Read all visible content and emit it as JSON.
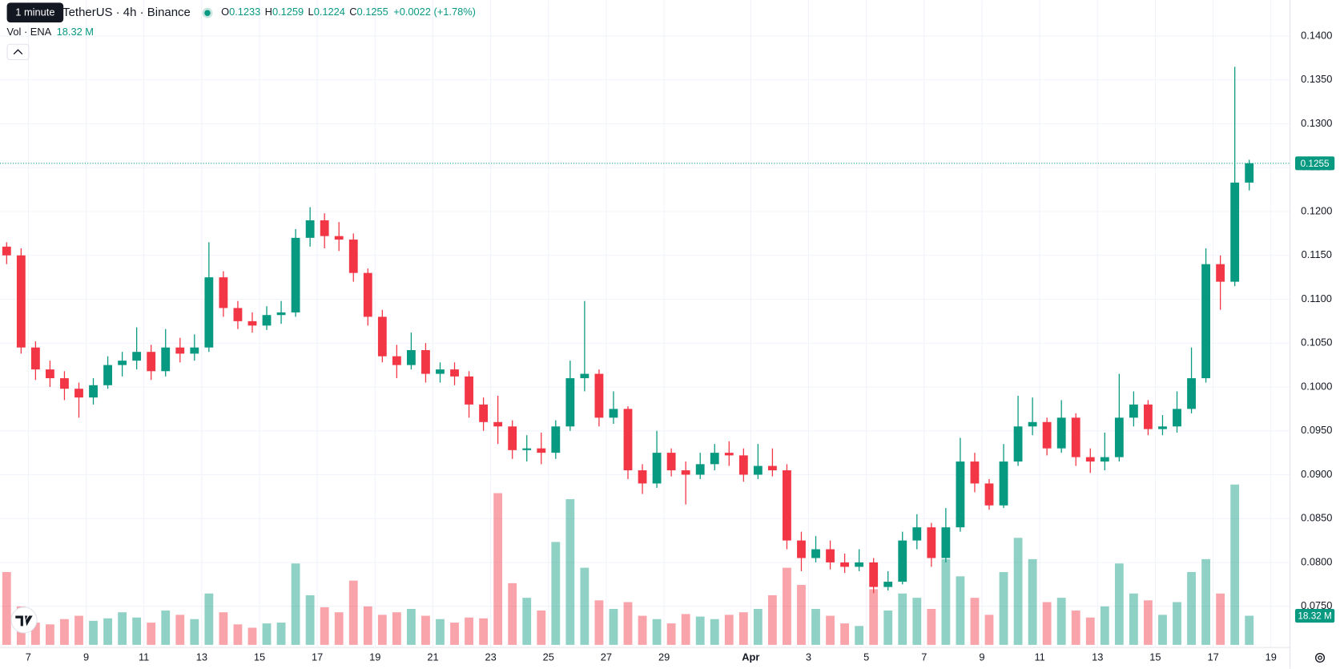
{
  "header": {
    "tooltip": "1 minute",
    "symbol": "TetherUS · 4h · Binance",
    "ohlc_labels": [
      "O",
      "H",
      "L",
      "C"
    ],
    "change": "+0.0022 (+1.78%)",
    "volume_title": "Vol · ENA",
    "volume_last_label": "18.32 M"
  },
  "chart_data": {
    "type": "candlestick",
    "up_color": "#089981",
    "down_color": "#f23645",
    "grid": true,
    "x": [
      6.25,
      6.75,
      7.25,
      7.75,
      8.25,
      8.75,
      9.25,
      9.75,
      10.25,
      10.75,
      11.25,
      11.75,
      12.25,
      12.75,
      13.25,
      13.75,
      14.25,
      14.75,
      15.25,
      15.75,
      16.25,
      16.75,
      17.25,
      17.75,
      18.25,
      18.75,
      19.25,
      19.75,
      20.25,
      20.75,
      21.25,
      21.75,
      22.25,
      22.75,
      23.25,
      23.75,
      24.25,
      24.75,
      25.25,
      25.75,
      26.25,
      26.75,
      27.25,
      27.75,
      28.25,
      28.75,
      29.25,
      29.75,
      30.25,
      30.75,
      31.25,
      31.75,
      32.25,
      32.75,
      33.25,
      33.75,
      34.25,
      34.75,
      35.25,
      35.75,
      36.25,
      36.75,
      37.25,
      37.75,
      38.25,
      38.75,
      39.25,
      39.75,
      40.25,
      40.75,
      41.25,
      41.75,
      42.25,
      42.75,
      43.25,
      43.75,
      44.25,
      44.75,
      45.25,
      45.75,
      46.25,
      46.75,
      47.25,
      47.75,
      48.25,
      48.75,
      49.25
    ],
    "open": [
      0.116,
      0.115,
      0.1045,
      0.102,
      0.101,
      0.0998,
      0.0988,
      0.1002,
      0.1025,
      0.103,
      0.104,
      0.1018,
      0.1045,
      0.1038,
      0.1045,
      0.1125,
      0.109,
      0.1075,
      0.107,
      0.1082,
      0.1085,
      0.117,
      0.119,
      0.1172,
      0.1168,
      0.113,
      0.108,
      0.1035,
      0.1025,
      0.1042,
      0.1015,
      0.102,
      0.1012,
      0.098,
      0.096,
      0.0955,
      0.0928,
      0.093,
      0.0925,
      0.0955,
      0.101,
      0.1015,
      0.0965,
      0.0975,
      0.0905,
      0.089,
      0.0925,
      0.0905,
      0.09,
      0.0912,
      0.0925,
      0.0922,
      0.09,
      0.091,
      0.0905,
      0.0825,
      0.0805,
      0.0815,
      0.08,
      0.0795,
      0.08,
      0.0772,
      0.0778,
      0.0825,
      0.084,
      0.0805,
      0.084,
      0.0915,
      0.089,
      0.0865,
      0.0915,
      0.0955,
      0.096,
      0.093,
      0.0965,
      0.092,
      0.0915,
      0.092,
      0.0965,
      0.098,
      0.0952,
      0.0955,
      0.0975,
      0.101,
      0.114,
      0.112,
      0.1233
    ],
    "high": [
      0.1165,
      0.1158,
      0.1052,
      0.103,
      0.1018,
      0.1005,
      0.101,
      0.1035,
      0.104,
      0.1068,
      0.1048,
      0.1066,
      0.1056,
      0.106,
      0.1165,
      0.1132,
      0.1098,
      0.1085,
      0.1092,
      0.1098,
      0.118,
      0.1205,
      0.1198,
      0.1188,
      0.1175,
      0.1135,
      0.1088,
      0.1048,
      0.1062,
      0.105,
      0.1028,
      0.1028,
      0.1018,
      0.0988,
      0.099,
      0.0962,
      0.0945,
      0.0948,
      0.0962,
      0.103,
      0.1098,
      0.102,
      0.0995,
      0.0978,
      0.0912,
      0.095,
      0.093,
      0.0915,
      0.0925,
      0.0935,
      0.0938,
      0.093,
      0.0935,
      0.093,
      0.0912,
      0.0835,
      0.083,
      0.0825,
      0.081,
      0.0815,
      0.0805,
      0.079,
      0.0835,
      0.0855,
      0.0845,
      0.0862,
      0.0942,
      0.0925,
      0.0895,
      0.0935,
      0.099,
      0.0988,
      0.0965,
      0.0985,
      0.097,
      0.093,
      0.0948,
      0.1015,
      0.0995,
      0.0985,
      0.0968,
      0.0995,
      0.1045,
      0.1158,
      0.115,
      0.1365,
      0.1259
    ],
    "low": [
      0.114,
      0.1038,
      0.1008,
      0.1,
      0.0985,
      0.0965,
      0.098,
      0.0998,
      0.1012,
      0.102,
      0.1008,
      0.1012,
      0.1028,
      0.103,
      0.104,
      0.108,
      0.1066,
      0.1062,
      0.1065,
      0.1072,
      0.108,
      0.116,
      0.1158,
      0.1155,
      0.112,
      0.107,
      0.1028,
      0.101,
      0.102,
      0.1005,
      0.1005,
      0.1002,
      0.0965,
      0.095,
      0.0935,
      0.0918,
      0.0915,
      0.0912,
      0.0918,
      0.095,
      0.0995,
      0.0955,
      0.0958,
      0.0895,
      0.0878,
      0.0885,
      0.0898,
      0.0866,
      0.0895,
      0.0905,
      0.091,
      0.0892,
      0.0895,
      0.0898,
      0.0815,
      0.079,
      0.08,
      0.0792,
      0.0788,
      0.079,
      0.0765,
      0.0768,
      0.0775,
      0.0815,
      0.0795,
      0.08,
      0.0835,
      0.088,
      0.086,
      0.0862,
      0.091,
      0.0945,
      0.0922,
      0.0925,
      0.091,
      0.0902,
      0.0905,
      0.0915,
      0.0955,
      0.0945,
      0.0945,
      0.0948,
      0.097,
      0.1005,
      0.1088,
      0.1115,
      0.1224
    ],
    "close": [
      0.115,
      0.1045,
      0.102,
      0.101,
      0.0998,
      0.0988,
      0.1002,
      0.1025,
      0.103,
      0.104,
      0.1018,
      0.1045,
      0.1038,
      0.1045,
      0.1125,
      0.109,
      0.1075,
      0.107,
      0.1082,
      0.1085,
      0.117,
      0.119,
      0.1172,
      0.1168,
      0.113,
      0.108,
      0.1035,
      0.1025,
      0.1042,
      0.1015,
      0.102,
      0.1012,
      0.098,
      0.096,
      0.0955,
      0.0928,
      0.093,
      0.0925,
      0.0955,
      0.101,
      0.1015,
      0.0965,
      0.0975,
      0.0905,
      0.089,
      0.0925,
      0.0905,
      0.09,
      0.0912,
      0.0925,
      0.0922,
      0.09,
      0.091,
      0.0905,
      0.0825,
      0.0805,
      0.0815,
      0.08,
      0.0795,
      0.08,
      0.0772,
      0.0778,
      0.0825,
      0.084,
      0.0805,
      0.084,
      0.0915,
      0.089,
      0.0865,
      0.0915,
      0.0955,
      0.096,
      0.093,
      0.0965,
      0.092,
      0.0915,
      0.092,
      0.0965,
      0.098,
      0.0952,
      0.0955,
      0.0975,
      0.101,
      0.114,
      0.112,
      0.1233,
      0.1255
    ],
    "volume": [
      45.8,
      24.2,
      14.0,
      12.9,
      16.2,
      18.3,
      15.1,
      16.7,
      20.5,
      17.2,
      14.0,
      21.6,
      18.9,
      16.2,
      32.3,
      20.5,
      12.9,
      10.8,
      13.5,
      14.0,
      51.2,
      31.2,
      23.7,
      20.5,
      40.4,
      24.2,
      18.9,
      20.5,
      22.6,
      18.3,
      16.2,
      14.0,
      17.2,
      16.7,
      95.4,
      38.8,
      29.6,
      21.6,
      64.7,
      91.6,
      48.5,
      28.0,
      22.6,
      26.9,
      18.3,
      16.2,
      13.5,
      19.4,
      17.8,
      16.2,
      18.9,
      20.5,
      22.6,
      31.2,
      48.5,
      37.7,
      22.6,
      18.3,
      13.5,
      11.9,
      35.0,
      21.6,
      32.3,
      29.6,
      22.6,
      53.9,
      43.1,
      29.6,
      18.9,
      45.8,
      67.3,
      53.9,
      26.9,
      29.6,
      21.6,
      17.2,
      24.2,
      51.2,
      32.3,
      28.0,
      18.9,
      26.9,
      45.8,
      53.9,
      32.3,
      100.8,
      18.32
    ],
    "xlim": [
      6.02,
      50.66
    ],
    "xticks": [
      7,
      9,
      11,
      13,
      15,
      17,
      19,
      21,
      23,
      25,
      27,
      29,
      {
        "value": 32,
        "label": "Apr"
      },
      {
        "value": 34,
        "label": "3"
      },
      {
        "value": 36,
        "label": "5"
      },
      {
        "value": 38,
        "label": "7"
      },
      {
        "value": 40,
        "label": "9"
      },
      {
        "value": 42,
        "label": "11"
      },
      {
        "value": 44,
        "label": "13"
      },
      {
        "value": 46,
        "label": "15"
      },
      {
        "value": 48,
        "label": "17"
      },
      {
        "value": 50,
        "label": "19"
      }
    ],
    "ylim": [
      0.0706,
      0.1441
    ],
    "yticks": [
      {
        "value": 0.075,
        "label": "0.0750"
      },
      {
        "value": 0.08,
        "label": "0.0800"
      },
      {
        "value": 0.085,
        "label": "0.0850"
      },
      {
        "value": 0.09,
        "label": "0.0900"
      },
      {
        "value": 0.095,
        "label": "0.0950"
      },
      {
        "value": 0.1,
        "label": "0.1000"
      },
      {
        "value": 0.105,
        "label": "0.1050"
      },
      {
        "value": 0.11,
        "label": "0.1100"
      },
      {
        "value": 0.115,
        "label": "0.1150"
      },
      {
        "value": 0.12,
        "label": "0.1200"
      },
      {
        "value": 0.125,
        "label": "0.1250"
      },
      {
        "value": 0.13,
        "label": "0.1300"
      },
      {
        "value": 0.135,
        "label": "0.1350"
      },
      {
        "value": 0.14,
        "label": "0.1400"
      }
    ]
  }
}
